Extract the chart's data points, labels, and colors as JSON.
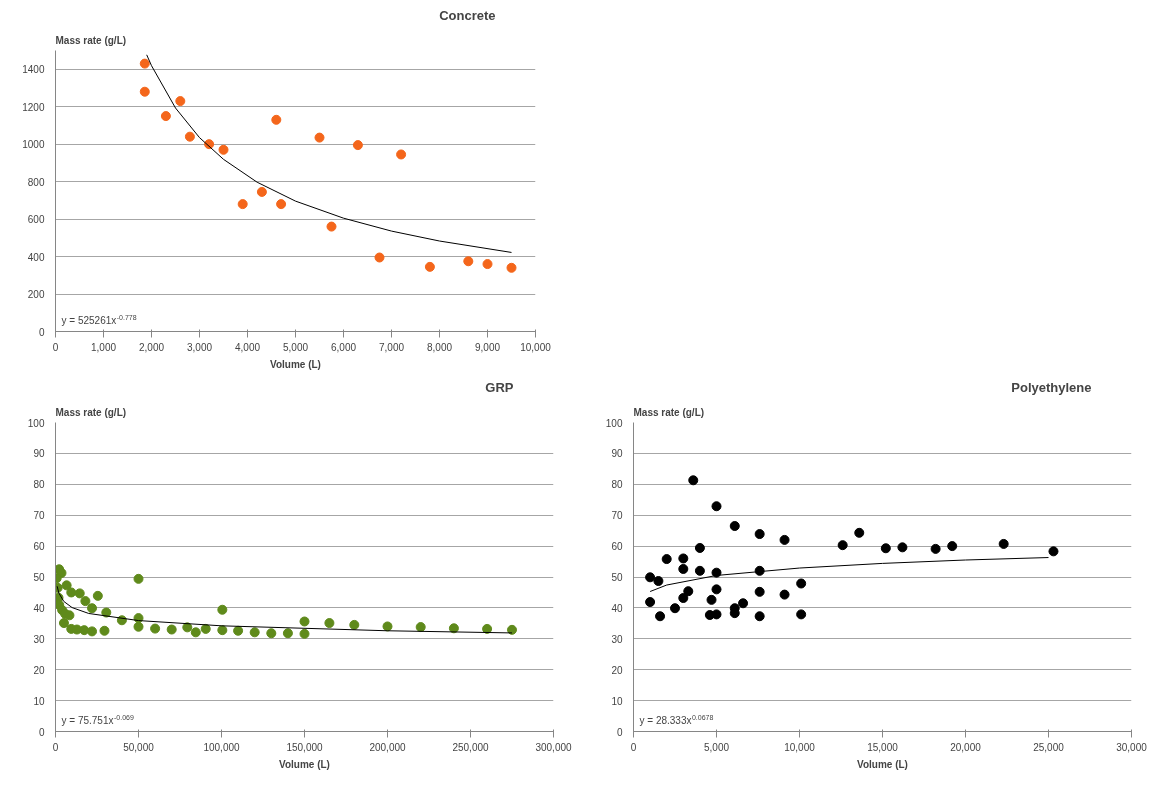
{
  "chart_data": [
    {
      "type": "scatter",
      "title": "Concrete",
      "ylabel": "Mass rate (g/L)",
      "xlabel": "Volume (L)",
      "annotations": [
        "y = 525261x$^{-0.778}$"
      ],
      "xlim": [
        0,
        10000
      ],
      "ylim": [
        0,
        1500
      ],
      "xticks": [
        0,
        {
          "value": 1000,
          "label": "1,000"
        },
        {
          "value": 2000,
          "label": "2,000"
        },
        {
          "value": 3000,
          "label": "3,000"
        },
        {
          "value": 4000,
          "label": "4,000"
        },
        {
          "value": 5000,
          "label": "5,000"
        },
        {
          "value": 6000,
          "label": "6,000"
        },
        {
          "value": 7000,
          "label": "7,000"
        },
        {
          "value": 8000,
          "label": "8,000"
        },
        {
          "value": 9000,
          "label": "9,000"
        },
        {
          "value": 10000,
          "label": "10,000"
        }
      ],
      "yticks": [
        0,
        200,
        400,
        600,
        800,
        1000,
        1200,
        1400
      ],
      "grid": "y",
      "series": [
        {
          "marker": "circle",
          "color": "#f4661b",
          "x": [
            1860,
            1860,
            2600,
            2300,
            2800,
            3200,
            3500,
            4600,
            5500,
            6300,
            7200,
            4300,
            3900,
            4700,
            5750,
            6750,
            7800,
            8600,
            9000,
            9500
          ],
          "values": [
            1430,
            1280,
            1230,
            1150,
            1040,
            1000,
            970,
            1130,
            1035,
            995,
            945,
            745,
            680,
            680,
            560,
            395,
            345,
            375,
            360,
            340
          ]
        },
        {
          "type": "line",
          "color": "#000000",
          "x": [
            1900,
            2000,
            2500,
            3000,
            3500,
            4200,
            5000,
            6000,
            7000,
            8000,
            9500
          ],
          "values": [
            1477,
            1419,
            1193,
            1035,
            919,
            797,
            696,
            605,
            536,
            483,
            422
          ]
        }
      ]
    },
    {
      "type": "scatter",
      "title": "GRP",
      "ylabel": "Mass rate (g/L)",
      "xlabel": "Volume (L)",
      "annotations": [
        "y = 75.751x$^{-0.069}$"
      ],
      "xlim": [
        0,
        300000
      ],
      "ylim": [
        0,
        100
      ],
      "xticks": [
        0,
        {
          "value": 50000,
          "label": "50,000"
        },
        {
          "value": 100000,
          "label": "100,000"
        },
        {
          "value": 150000,
          "label": "150,000"
        },
        {
          "value": 200000,
          "label": "200,000"
        },
        {
          "value": 250000,
          "label": "250,000"
        },
        {
          "value": 300000,
          "label": "300,000"
        }
      ],
      "yticks": [
        0,
        10,
        20,
        30,
        40,
        50,
        60,
        70,
        80,
        90,
        100
      ],
      "grid": "y",
      "series": [
        {
          "marker": "circle",
          "color": "#5f8a1b",
          "x": [
            2200,
            3600,
            700,
            1300,
            6700,
            9500,
            14600,
            18000,
            22000,
            25500,
            30600,
            1800,
            2200,
            4000,
            5800,
            8400,
            5100,
            9500,
            12900,
            17300,
            22000,
            29500,
            40000,
            50000,
            50000,
            50000,
            60000,
            70000,
            79400,
            84500,
            90500,
            100500,
            100500,
            110000,
            120000,
            130000,
            140000,
            150000,
            150000,
            165000,
            180000,
            200000,
            220000,
            240000,
            260000,
            275000
          ],
          "values": [
            52.5,
            51.3,
            49.6,
            46.5,
            47.3,
            45.0,
            44.7,
            42.2,
            39.9,
            43.9,
            38.5,
            43.3,
            41.0,
            39.3,
            38.1,
            37.6,
            35.1,
            33.2,
            33.0,
            32.8,
            32.4,
            32.6,
            36.0,
            49.4,
            36.7,
            33.9,
            33.3,
            33.0,
            33.7,
            32.1,
            33.2,
            39.4,
            32.8,
            32.6,
            32.1,
            31.8,
            31.8,
            35.6,
            31.6,
            35.1,
            34.5,
            34.0,
            33.8,
            33.4,
            33.2,
            32.9
          ]
        },
        {
          "type": "line",
          "color": "#000000",
          "x": [
            1000,
            2000,
            5000,
            10000,
            20000,
            50000,
            100000,
            200000,
            275000
          ],
          "values": [
            47.0,
            44.8,
            42.1,
            40.1,
            38.2,
            35.9,
            34.2,
            32.6,
            31.9
          ]
        }
      ]
    },
    {
      "type": "scatter",
      "title": "Polyethylene",
      "ylabel": "Mass rate (g/L)",
      "xlabel": "Volume (L)",
      "annotations": [
        "y = 28.333x$^{0.0678}$"
      ],
      "xlim": [
        0,
        30000
      ],
      "ylim": [
        0,
        100
      ],
      "xticks": [
        0,
        {
          "value": 5000,
          "label": "5,000"
        },
        {
          "value": 10000,
          "label": "10,000"
        },
        {
          "value": 15000,
          "label": "15,000"
        },
        {
          "value": 20000,
          "label": "20,000"
        },
        {
          "value": 25000,
          "label": "25,000"
        },
        {
          "value": 30000,
          "label": "30,000"
        }
      ],
      "yticks": [
        0,
        10,
        20,
        30,
        40,
        50,
        60,
        70,
        80,
        90,
        100
      ],
      "grid": "y",
      "series": [
        {
          "marker": "circle",
          "color": "#000000",
          "x": [
            1000,
            1500,
            1000,
            1600,
            2000,
            2500,
            3000,
            3000,
            3000,
            3300,
            3600,
            4000,
            4000,
            4600,
            4700,
            5000,
            5000,
            5000,
            5000,
            6100,
            6100,
            6100,
            6600,
            7600,
            7600,
            7600,
            7600,
            9100,
            9100,
            10100,
            10100,
            12600,
            13600,
            15200,
            16200,
            18200,
            19200,
            22300,
            25300
          ],
          "values": [
            49.9,
            48.7,
            41.9,
            37.3,
            55.8,
            39.9,
            56.0,
            52.6,
            43.2,
            45.4,
            81.3,
            59.4,
            52.0,
            37.7,
            42.6,
            72.9,
            51.4,
            46.0,
            37.9,
            66.5,
            39.9,
            38.3,
            41.5,
            63.9,
            52.0,
            45.2,
            37.3,
            62.0,
            44.3,
            47.9,
            37.9,
            60.3,
            64.3,
            59.3,
            59.6,
            59.1,
            60.0,
            60.7,
            58.3
          ]
        },
        {
          "type": "line",
          "color": "#000000",
          "x": [
            1000,
            2000,
            5000,
            10000,
            15000,
            20000,
            25000
          ],
          "values": [
            45.3,
            47.4,
            50.5,
            52.9,
            54.4,
            55.5,
            56.3
          ]
        }
      ]
    }
  ]
}
